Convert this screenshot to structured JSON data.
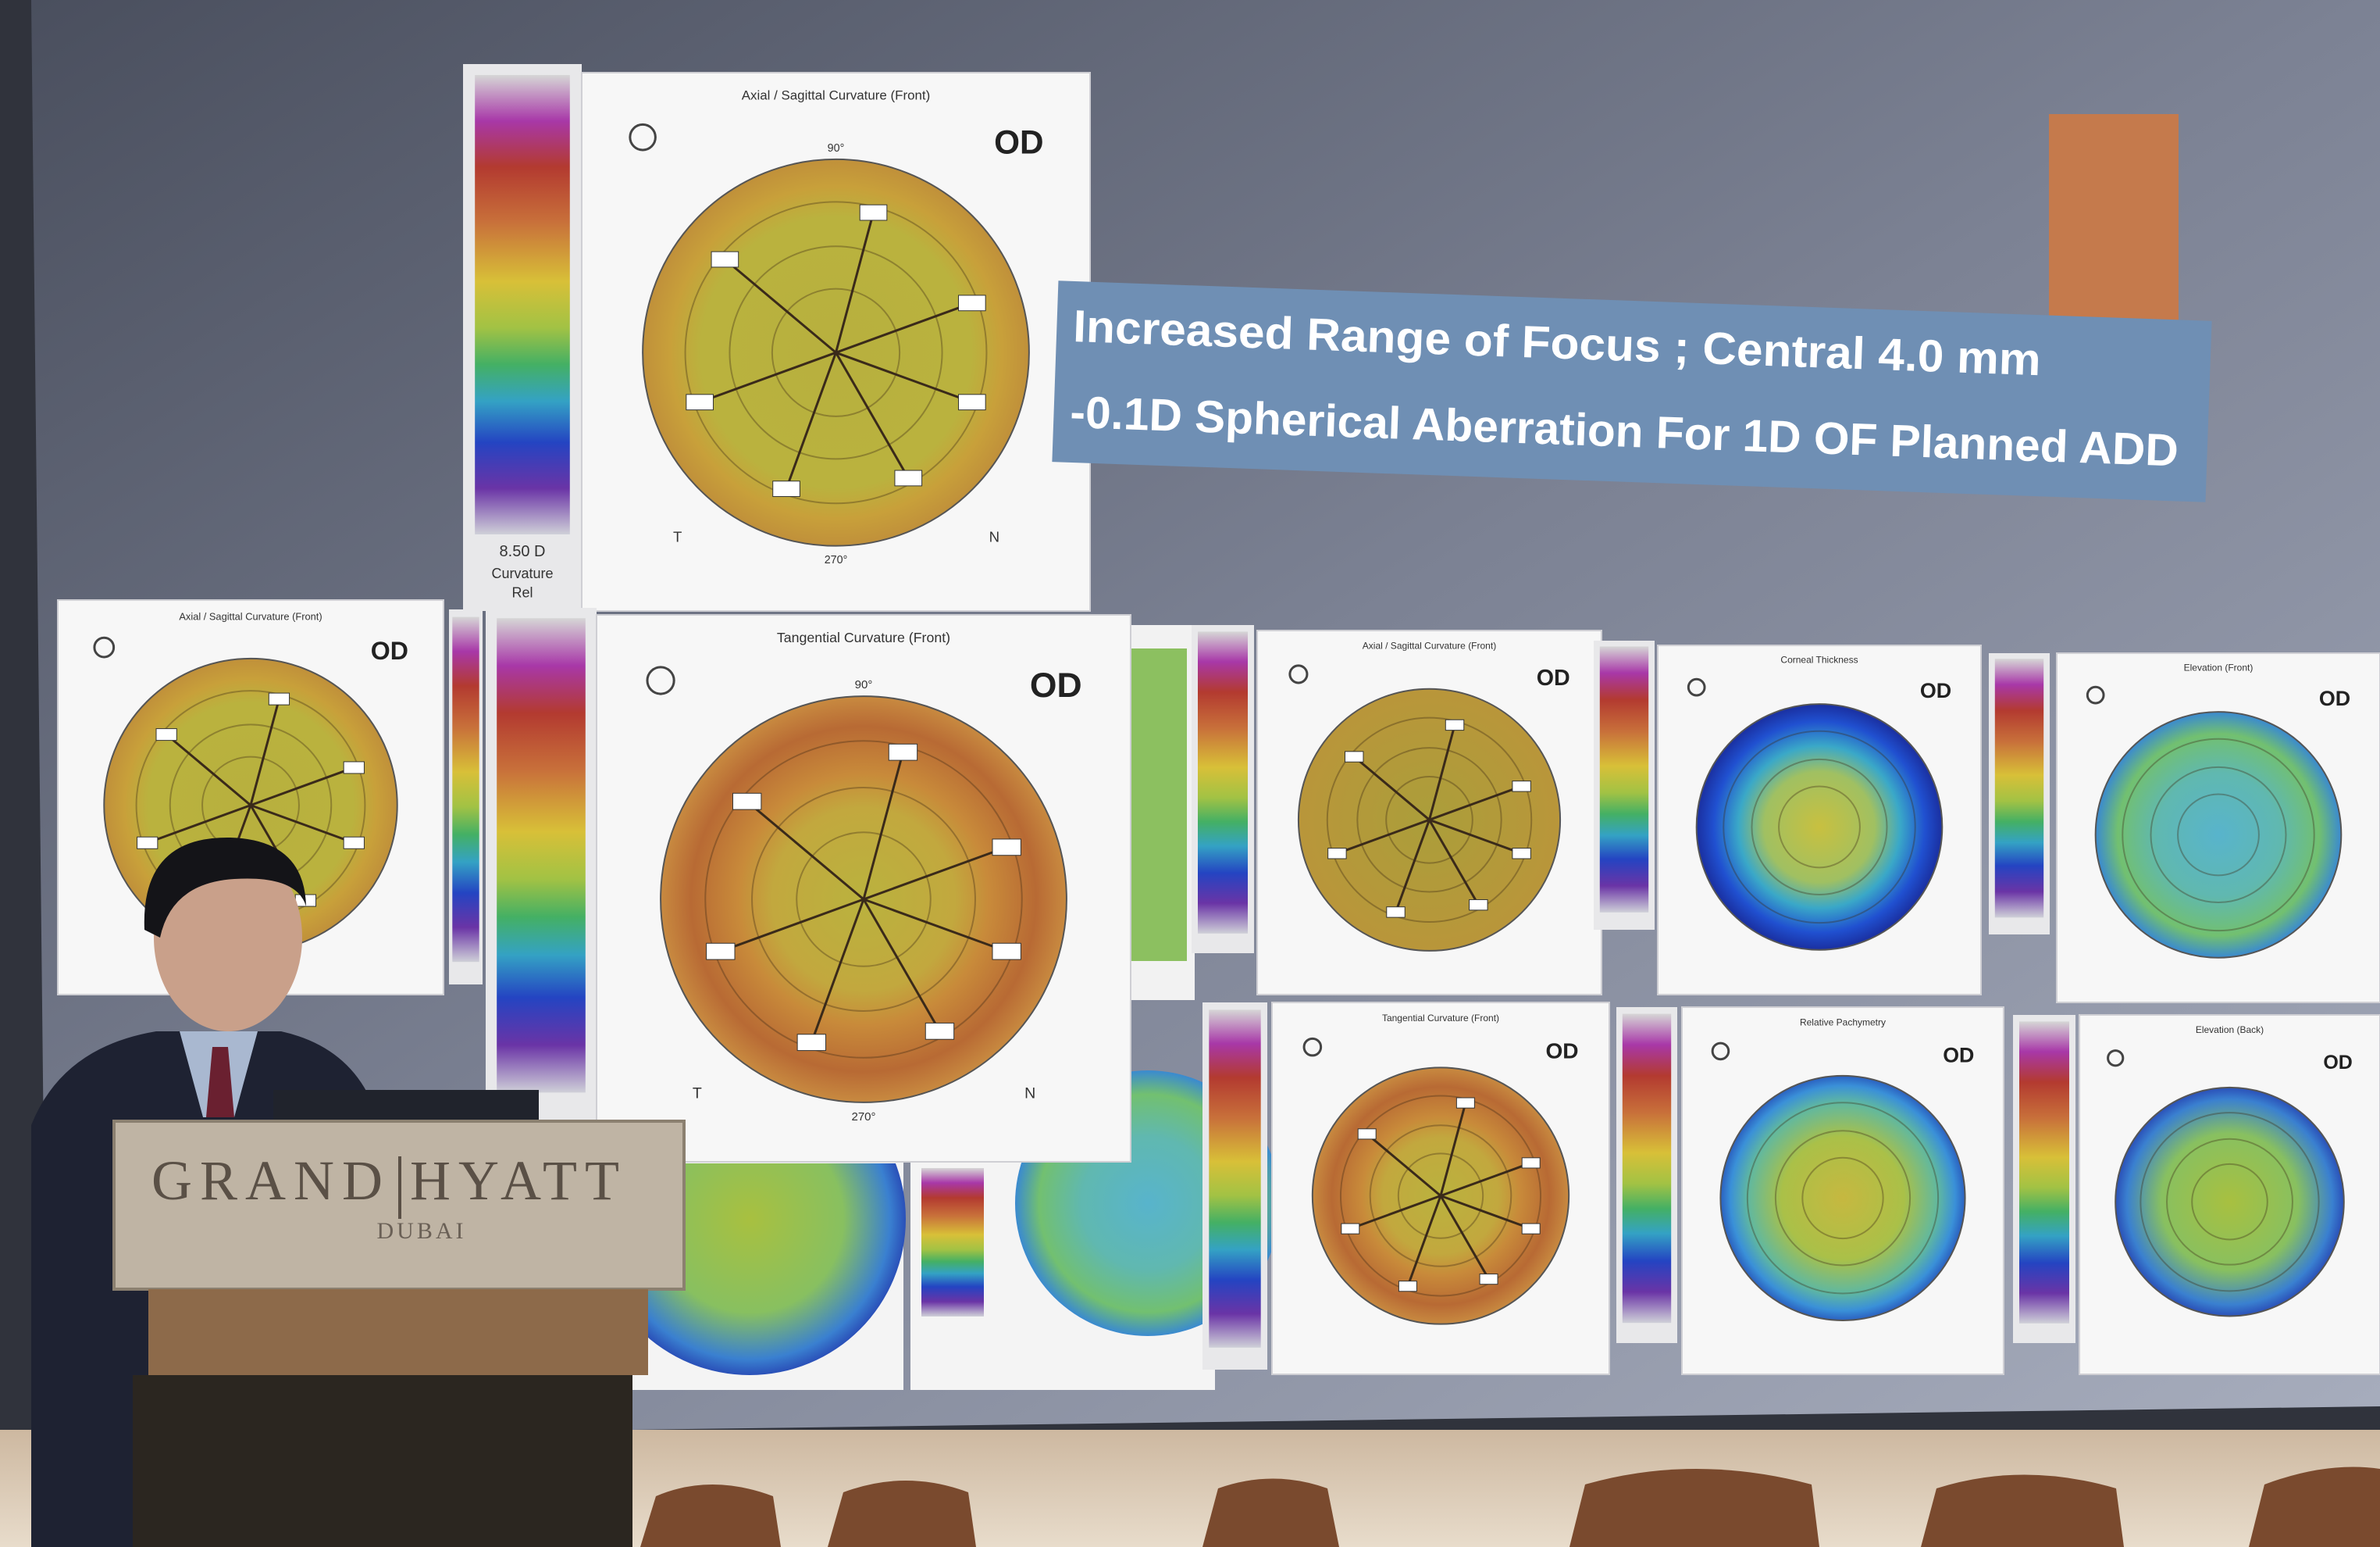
{
  "slide": {
    "caption": [
      "Increased Range of Focus ; Central 4.0 mm",
      "-0.1D Spherical Aberration For 1D OF Planned ADD"
    ],
    "maps": [
      {
        "title": "Axial / Sagittal Curvature (Front)",
        "eye": "OD",
        "top": "90°",
        "bottom": "270°",
        "left": "T",
        "right": "N",
        "scale": "8.50 D",
        "scale_type": "Curvature",
        "scale_mode": "Rel"
      },
      {
        "title": "Tangential Curvature (Front)",
        "eye": "OD",
        "top": "90°",
        "bottom": "270°",
        "left": "T",
        "right": "N"
      },
      {
        "title": "Axial / Sagittal Curvature (Front)",
        "eye": "OD"
      },
      {
        "title": "Axial / Sagittal Curvature (Front)",
        "eye": "OD"
      },
      {
        "title": "Corneal Thickness",
        "eye": "OD"
      },
      {
        "title": "Elevation (Front)",
        "eye": "OD"
      },
      {
        "title": "Tangential Curvature (Front)",
        "eye": "OD"
      },
      {
        "title": "Relative Pachymetry",
        "eye": "OD"
      },
      {
        "title": "Elevation (Back)",
        "eye": "OD"
      }
    ]
  },
  "podium": {
    "brand": [
      "GRAND",
      "HYATT"
    ],
    "city": "DUBAI"
  }
}
